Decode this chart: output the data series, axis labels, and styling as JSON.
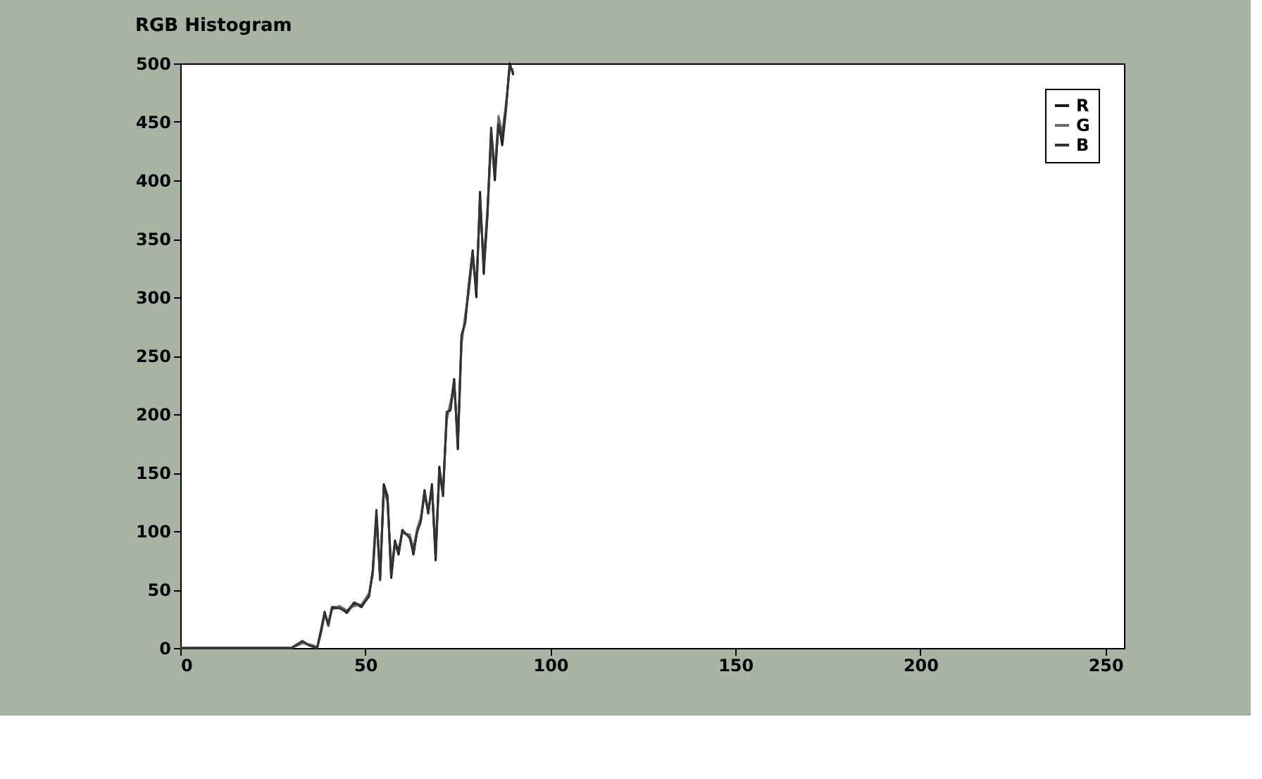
{
  "chart_data": {
    "type": "line",
    "title": "RGB Histogram",
    "x": [
      0,
      10,
      20,
      30,
      33,
      35,
      37,
      38,
      39,
      40,
      41,
      43,
      45,
      47,
      49,
      51,
      52,
      53,
      54,
      55,
      56,
      57,
      58,
      59,
      60,
      62,
      63,
      64,
      65,
      66,
      67,
      68,
      69,
      70,
      71,
      72,
      73,
      74,
      75,
      76,
      77,
      78,
      79,
      80,
      81,
      82,
      83,
      84,
      85,
      86,
      87,
      88,
      89,
      90
    ],
    "series": [
      {
        "name": "R",
        "color": "#1a1a1a",
        "values": [
          0,
          0,
          0,
          0,
          5,
          2,
          0,
          15,
          30,
          20,
          35,
          35,
          30,
          38,
          35,
          45,
          65,
          115,
          60,
          140,
          130,
          60,
          90,
          80,
          100,
          95,
          80,
          100,
          110,
          135,
          115,
          140,
          75,
          155,
          130,
          200,
          205,
          230,
          170,
          265,
          280,
          310,
          340,
          300,
          390,
          320,
          370,
          440,
          400,
          450,
          430,
          460,
          500,
          490
        ]
      },
      {
        "name": "G",
        "color": "#6b6b6b",
        "values": [
          0,
          0,
          0,
          0,
          4,
          3,
          1,
          12,
          28,
          22,
          33,
          36,
          32,
          36,
          37,
          47,
          62,
          110,
          65,
          135,
          125,
          70,
          88,
          85,
          98,
          97,
          85,
          102,
          112,
          130,
          118,
          135,
          85,
          150,
          135,
          195,
          210,
          225,
          180,
          260,
          285,
          305,
          335,
          310,
          380,
          330,
          375,
          430,
          410,
          455,
          440,
          465,
          495,
          495
        ]
      },
      {
        "name": "B",
        "color": "#333333",
        "values": [
          0,
          0,
          0,
          0,
          6,
          2,
          0,
          14,
          31,
          19,
          34,
          34,
          31,
          39,
          36,
          44,
          66,
          118,
          58,
          138,
          128,
          62,
          92,
          82,
          101,
          94,
          82,
          99,
          108,
          133,
          116,
          138,
          78,
          152,
          132,
          202,
          203,
          228,
          175,
          268,
          278,
          312,
          338,
          305,
          385,
          325,
          372,
          445,
          405,
          448,
          435,
          462,
          498,
          492
        ]
      }
    ],
    "xlim": [
      0,
      255
    ],
    "ylim": [
      0,
      500
    ],
    "xticks": [
      0,
      50,
      100,
      150,
      200,
      250
    ],
    "yticks": [
      0,
      50,
      100,
      150,
      200,
      250,
      300,
      350,
      400,
      450,
      500
    ],
    "legend": "top right",
    "grid": false,
    "line_style": "solid"
  }
}
